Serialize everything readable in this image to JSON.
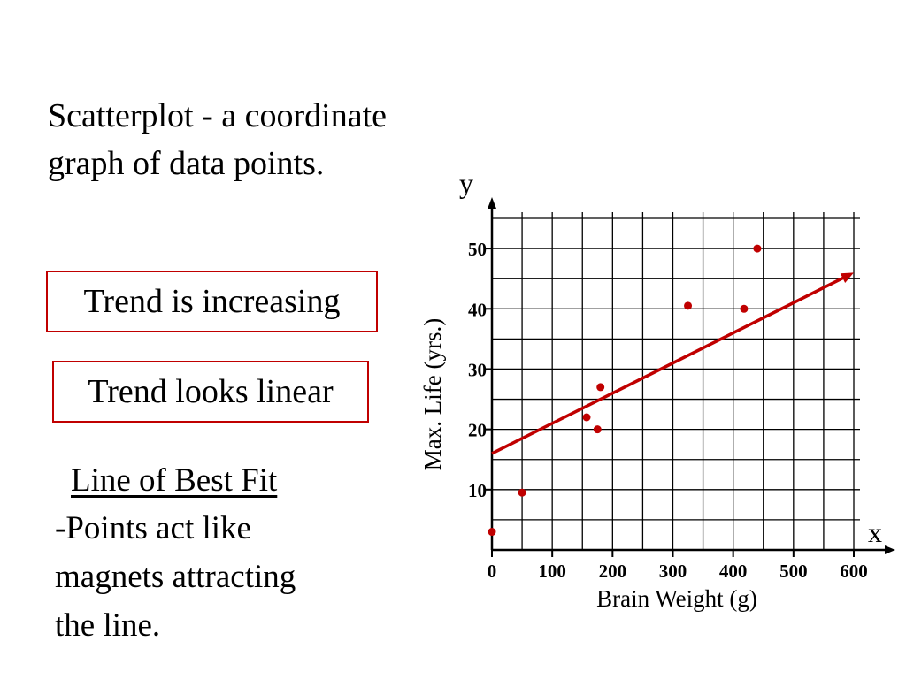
{
  "slide": {
    "definition_line1": "Scatterplot - a coordinate",
    "definition_line2": "graph of data points.",
    "trend_box_1": "Trend is increasing",
    "trend_box_2": "Trend looks linear",
    "best_fit_title": "Line of Best Fit",
    "best_fit_line1": "-Points act like",
    "best_fit_line2": "magnets attracting",
    "best_fit_line3": "the line."
  },
  "colors": {
    "accent": "#c00000",
    "grid": "#000000"
  },
  "chart_data": {
    "type": "scatter",
    "xlabel": "Brain Weight (g)",
    "ylabel": "Max. Life (yrs.)",
    "x_axis_letter": "x",
    "y_axis_letter": "y",
    "xlim": [
      0,
      600
    ],
    "ylim": [
      0,
      55
    ],
    "x_ticks": [
      0,
      100,
      200,
      300,
      400,
      500,
      600
    ],
    "y_ticks": [
      10,
      20,
      30,
      40,
      50
    ],
    "x_tick_labels": [
      "0",
      "100",
      "200",
      "300",
      "400",
      "500",
      "600"
    ],
    "y_tick_labels": [
      "10",
      "20",
      "30",
      "40",
      "50"
    ],
    "grid": true,
    "grid_x_step": 50,
    "grid_y_step": 5,
    "points": [
      {
        "x": 0,
        "y": 3
      },
      {
        "x": 50,
        "y": 9.5
      },
      {
        "x": 157,
        "y": 22
      },
      {
        "x": 175,
        "y": 20
      },
      {
        "x": 180,
        "y": 27
      },
      {
        "x": 325,
        "y": 40.5
      },
      {
        "x": 418,
        "y": 40
      },
      {
        "x": 440,
        "y": 50
      }
    ],
    "best_fit_line": {
      "x1": 0,
      "y1": 16,
      "x2": 600,
      "y2": 46
    }
  }
}
